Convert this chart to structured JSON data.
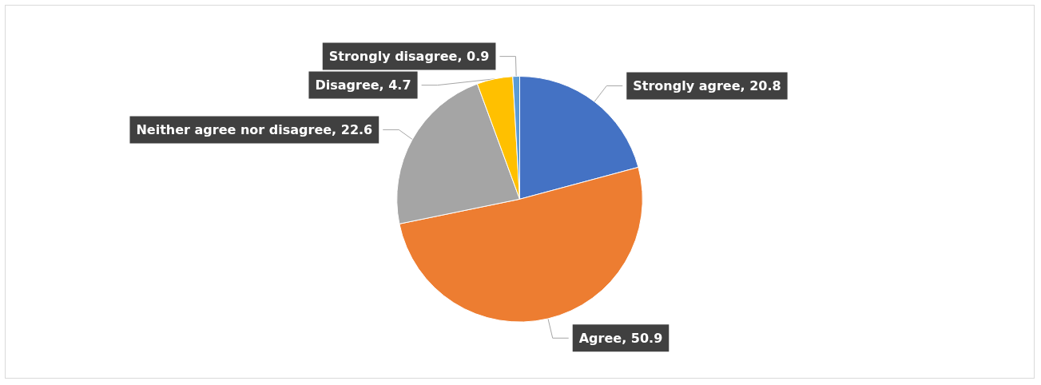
{
  "chart_data": {
    "type": "pie",
    "categories": [
      "Strongly agree",
      "Agree",
      "Neither agree nor disagree",
      "Disagree",
      "Strongly disagree"
    ],
    "values": [
      20.8,
      50.9,
      22.6,
      4.7,
      0.9
    ],
    "colors": [
      "#4472c4",
      "#ed7d31",
      "#a5a5a5",
      "#ffc000",
      "#5b9bd5"
    ],
    "value_labels": [
      ", 20.8",
      ", 50.9",
      ", 22.6",
      ", 4.7",
      ", 0.9"
    ],
    "legend": false
  }
}
